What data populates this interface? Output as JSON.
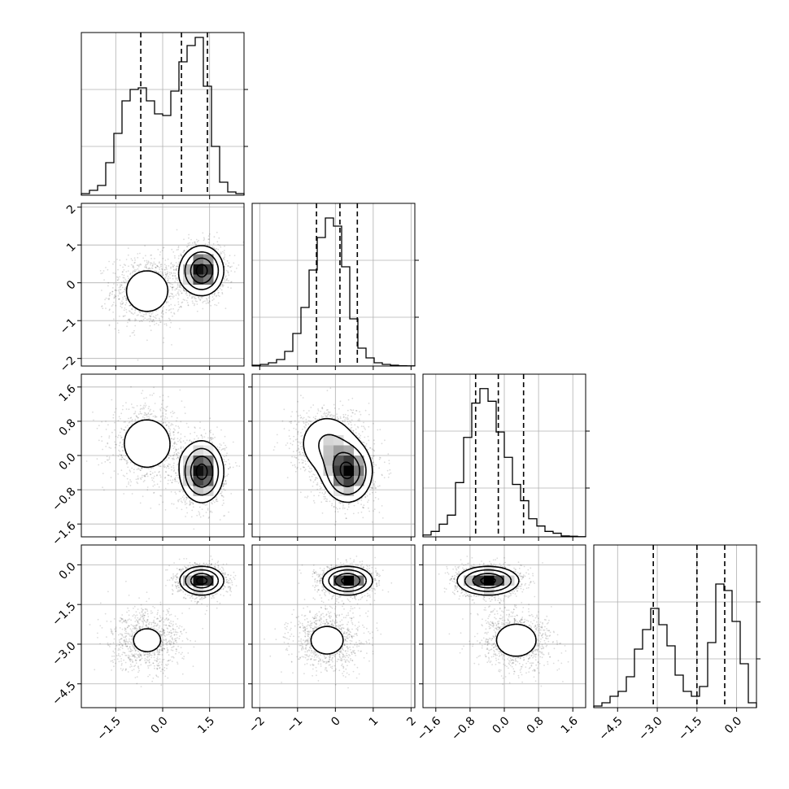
{
  "chart_data": {
    "type": "corner",
    "parameters": [
      {
        "id": "p0",
        "range": [
          -2.6,
          2.6
        ],
        "ticks": [
          -1.5,
          0,
          1.5
        ],
        "tick_labels": [
          "−1.5",
          "0.0",
          "1.5"
        ],
        "quantiles": [
          -0.7,
          0.6,
          1.43
        ],
        "hist_counts": [
          1,
          3,
          6,
          20,
          38,
          58,
          65,
          66,
          58,
          50,
          49,
          64,
          82,
          92,
          97,
          67,
          30,
          8,
          2,
          1
        ],
        "hist_peak": 100
      },
      {
        "id": "p1",
        "range": [
          -2.2,
          2.1
        ],
        "ticks": [
          -2,
          -1,
          0,
          1,
          2
        ],
        "tick_labels": [
          "−2",
          "−1",
          "0",
          "1",
          "2"
        ],
        "quantiles": [
          -0.5,
          0.12,
          0.58
        ],
        "hist_counts": [
          0.5,
          1,
          2,
          4,
          9,
          20,
          36,
          59,
          79,
          91,
          86,
          61,
          29,
          11,
          5,
          2,
          1,
          0.5,
          0.2,
          0.1
        ],
        "hist_peak": 100
      },
      {
        "id": "p2",
        "range": [
          -1.9,
          1.9
        ],
        "ticks": [
          -1.6,
          -0.8,
          0,
          0.8,
          1.6
        ],
        "tick_labels": [
          "−1.6",
          "−0.8",
          "0.0",
          "0.8",
          "1.6"
        ],
        "quantiles": [
          -0.67,
          -0.14,
          0.45
        ],
        "hist_counts": [
          1,
          3,
          7,
          12,
          30,
          55,
          74,
          82,
          75,
          58,
          44,
          29,
          20,
          10,
          6,
          3,
          2,
          0.5,
          0.3,
          0.1
        ],
        "hist_peak": 90
      },
      {
        "id": "p3",
        "range": [
          -5.4,
          0.75
        ],
        "ticks": [
          -4.5,
          -3,
          -1.5,
          0
        ],
        "tick_labels": [
          "−4.5",
          "−3.0",
          "−1.5",
          "0.0"
        ],
        "quantiles": [
          -3.15,
          -1.5,
          -0.45
        ],
        "hist_counts": [
          1,
          3,
          7,
          10,
          19,
          36,
          48,
          61,
          51,
          38,
          20,
          10,
          7,
          13,
          40,
          76,
          72,
          53,
          27,
          3
        ],
        "hist_peak": 100
      }
    ],
    "modes": [
      {
        "weight": 0.37,
        "mean": [
          -0.5,
          -0.22,
          0.28,
          -2.85
        ],
        "sd": [
          0.55,
          0.45,
          0.42,
          0.55
        ]
      },
      {
        "weight": 0.63,
        "mean": [
          1.25,
          0.32,
          -0.38,
          -0.6
        ],
        "sd": [
          0.35,
          0.33,
          0.36,
          0.27
        ]
      }
    ],
    "panels": [
      {
        "row": 1,
        "col": 0
      },
      {
        "row": 2,
        "col": 0
      },
      {
        "row": 2,
        "col": 1
      },
      {
        "row": 3,
        "col": 0
      },
      {
        "row": 3,
        "col": 1
      },
      {
        "row": 3,
        "col": 2
      }
    ],
    "contour_levels_sigma": [
      0.5,
      1.0,
      1.5,
      2.0
    ],
    "grid": true
  }
}
